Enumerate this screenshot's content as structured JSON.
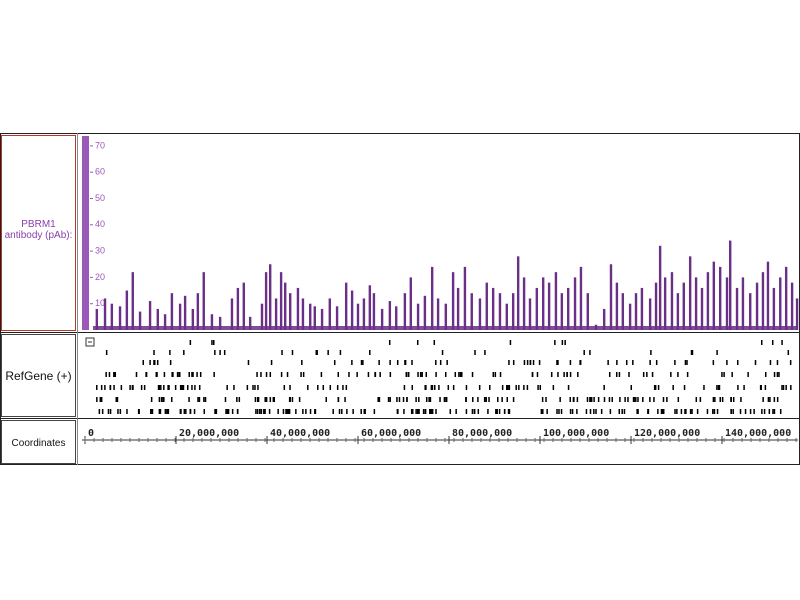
{
  "chart_data": {
    "type": "bar",
    "track_label": "PBRM1 antibody (pAb):",
    "gene_track_label": "RefGene (+)",
    "xlabel": "Coordinates",
    "color": "#6a2f86",
    "x": [
      2600000,
      4400000,
      5900000,
      7700000,
      9200000,
      10500000,
      12100000,
      14300000,
      16000000,
      17600000,
      19100000,
      20900000,
      22000000,
      23700000,
      24800000,
      26100000,
      27900000,
      29700000,
      32300000,
      33600000,
      34900000,
      36300000,
      38900000,
      39800000,
      40700000,
      42000000,
      43100000,
      44000000,
      45100000,
      46800000,
      47900000,
      49500000,
      50500000,
      52100000,
      53800000,
      55400000,
      57400000,
      58700000,
      60000000,
      61300000,
      62600000,
      63500000,
      65300000,
      67000000,
      68400000,
      70300000,
      71600000,
      73200000,
      74700000,
      76300000,
      77600000,
      79300000,
      80900000,
      82000000,
      83500000,
      85000000,
      86800000,
      88300000,
      89700000,
      91200000,
      92700000,
      94100000,
      95200000,
      96500000,
      97800000,
      99300000,
      100700000,
      102000000,
      103500000,
      104800000,
      106200000,
      107700000,
      109000000,
      110500000,
      112300000,
      114100000,
      115600000,
      116900000,
      118200000,
      119800000,
      121100000,
      122400000,
      124200000,
      125500000,
      126400000,
      127500000,
      129000000,
      130300000,
      131600000,
      133000000,
      134300000,
      135600000,
      136900000,
      138200000,
      139600000,
      141100000,
      141800000,
      143300000,
      144600000,
      146200000,
      147700000,
      149000000,
      150100000,
      151400000,
      152800000,
      154100000,
      155400000,
      156500000
    ],
    "values": [
      8,
      12,
      10,
      9,
      15,
      22,
      7,
      11,
      8,
      6,
      14,
      10,
      13,
      8,
      14,
      22,
      6,
      5,
      12,
      16,
      18,
      5,
      10,
      22,
      25,
      12,
      22,
      18,
      14,
      16,
      12,
      10,
      9,
      8,
      12,
      9,
      18,
      15,
      10,
      12,
      17,
      14,
      8,
      11,
      9,
      14,
      20,
      10,
      13,
      24,
      12,
      10,
      22,
      16,
      24,
      14,
      12,
      18,
      16,
      14,
      10,
      14,
      28,
      20,
      12,
      16,
      20,
      18,
      22,
      14,
      16,
      20,
      24,
      14,
      2,
      8,
      25,
      18,
      14,
      10,
      14,
      16,
      12,
      18,
      32,
      20,
      22,
      14,
      18,
      28,
      20,
      16,
      22,
      26,
      24,
      20,
      34,
      16,
      20,
      14,
      18,
      22,
      26,
      16,
      20,
      24,
      18,
      12
    ],
    "ylim": [
      0,
      73
    ],
    "yticks": [
      10,
      20,
      30,
      40,
      50,
      60,
      70
    ],
    "xlim": [
      0,
      156700000
    ],
    "xticks": [
      0,
      {
        "value": 20000000,
        "label": "20,000,000"
      },
      {
        "value": 40000000,
        "label": "40,000,000"
      },
      {
        "value": 60000000,
        "label": "60,000,000"
      },
      {
        "value": 80000000,
        "label": "80,000,000"
      },
      {
        "value": 100000000,
        "label": "100,000,000"
      },
      {
        "value": 120000000,
        "label": "120,000,000"
      },
      {
        "value": 140000000,
        "label": "140,000,000"
      }
    ]
  }
}
